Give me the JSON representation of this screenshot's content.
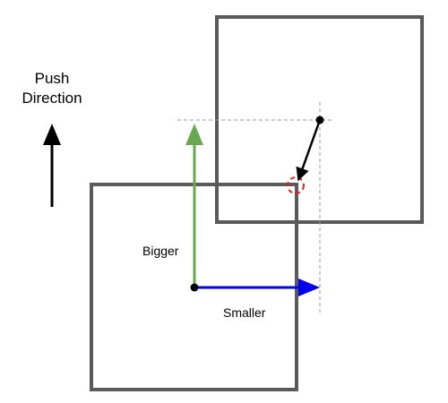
{
  "labels": {
    "push_direction_line1": "Push",
    "push_direction_line2": "Direction",
    "bigger": "Bigger",
    "smaller": "Smaller"
  },
  "colors": {
    "box_stroke": "#5a5a5a",
    "green_axis": "#6aa84f",
    "blue_axis": "#0000ee",
    "guide_dashes": "#999999",
    "contact_marker": "#e02020",
    "arrow_black": "#000000"
  },
  "icons": {
    "push_arrow": "up-arrow-icon",
    "contact_marker": "dashed-circle-icon"
  }
}
